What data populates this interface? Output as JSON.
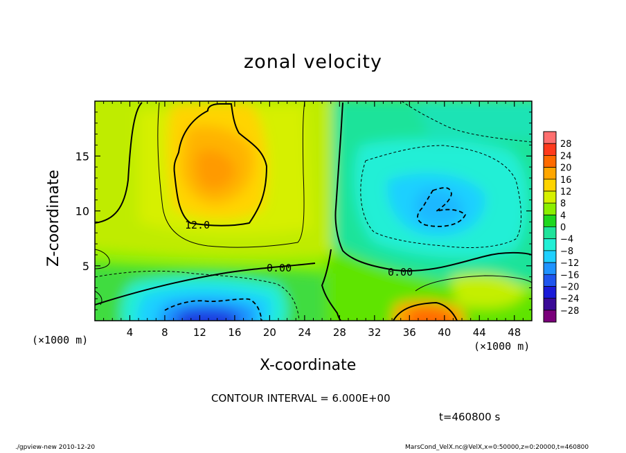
{
  "title": "zonal velocity",
  "chart_data": {
    "type": "heatmap",
    "title": "zonal velocity",
    "xlabel": "X-coordinate",
    "ylabel": "Z-coordinate",
    "x_unit": "(×1000 m)",
    "xlim": [
      0,
      50
    ],
    "ylim": [
      0,
      20
    ],
    "x_ticks": [
      "4",
      "8",
      "12",
      "16",
      "20",
      "24",
      "28",
      "32",
      "36",
      "40",
      "44",
      "48"
    ],
    "y_ticks": [
      "5",
      "10",
      "15"
    ],
    "colorbar": {
      "levels": [
        "28",
        "24",
        "20",
        "16",
        "12",
        "8",
        "4",
        "0",
        "−4",
        "−8",
        "−12",
        "−16",
        "−20",
        "−24",
        "−28"
      ],
      "colors": [
        "#ff6f6f",
        "#ff3a1c",
        "#ff6a00",
        "#ffa600",
        "#ffd400",
        "#d6f000",
        "#8bef00",
        "#1ed71e",
        "#1ee39a",
        "#22efd6",
        "#1fd0ff",
        "#1f93ff",
        "#1f55ee",
        "#1a1ad8",
        "#3a0a96",
        "#7a007a"
      ]
    },
    "contour_labels": [
      {
        "text": "12.0",
        "x": 14.0,
        "y": 8.6
      },
      {
        "text": "0.00",
        "x": 23.0,
        "y": 4.8
      },
      {
        "text": "0.00",
        "x": 35.0,
        "y": 4.5
      }
    ],
    "contour_interval": "CONTOUR INTERVAL = 6.000E+00",
    "time": "t=460800 s"
  },
  "footer": {
    "left": "./gpview-new  2010-12-20",
    "right": "MarsCond_VelX.nc@VelX,x=0:50000,z=0:20000,t=460800"
  }
}
